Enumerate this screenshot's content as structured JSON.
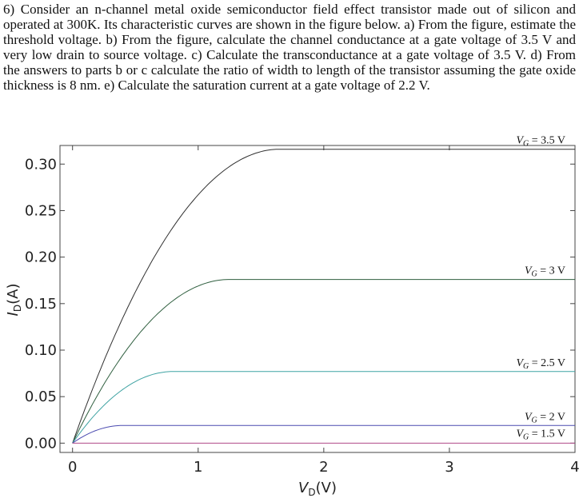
{
  "problem": {
    "text": "6) Consider an n-channel metal oxide semiconductor field effect transistor made out of silicon and operated at 300K. Its characteristic curves are shown in the figure below. a) From the figure, estimate the threshold voltage. b) From the figure, calculate the channel conductance at a gate voltage of 3.5 V and very low drain to source voltage. c) Calculate the transconductance at a gate voltage of 3.5 V. d) From the answers to parts b or c calculate the ratio of width to length of the transistor assuming the gate oxide thickness is 8 nm. e) Calculate the saturation current at a gate voltage of 2.2 V."
  },
  "chart_data": {
    "type": "line",
    "xlabel": "V_D(V)",
    "ylabel": "I_D(A)",
    "xlim": [
      -0.1,
      4.0
    ],
    "ylim": [
      -0.01,
      0.32
    ],
    "xticks": [
      0,
      1,
      2,
      3,
      4
    ],
    "yticks": [
      0.0,
      0.05,
      0.1,
      0.15,
      0.2,
      0.25,
      0.3
    ],
    "ytick_labels": [
      "0.00",
      "0.05",
      "0.10",
      "0.15",
      "0.20",
      "0.25",
      "0.30"
    ],
    "xtick_labels": [
      "0",
      "1",
      "2",
      "3",
      "4"
    ],
    "grid": false,
    "series": [
      {
        "name": "VG = 3.5 V",
        "vsat": 1.65,
        "isat": 0.316,
        "color": "#303030"
      },
      {
        "name": "VG = 3 V",
        "vsat": 1.25,
        "isat": 0.176,
        "color": "#2f5f3f"
      },
      {
        "name": "VG = 2.5 V",
        "vsat": 0.8,
        "isat": 0.077,
        "color": "#3fa3a3"
      },
      {
        "name": "VG = 2 V",
        "vsat": 0.4,
        "isat": 0.019,
        "color": "#4a4ab0"
      },
      {
        "name": "VG = 1.5 V",
        "vsat": 0.0,
        "isat": 0.0,
        "color": "#b04a8a"
      }
    ],
    "curve_labels": [
      {
        "sub": "G",
        "rest": "= 3.5 V"
      },
      {
        "sub": "G",
        "rest": "= 3 V"
      },
      {
        "sub": "G",
        "rest": "= 2.5 V"
      },
      {
        "sub": "G",
        "rest": "= 2 V"
      },
      {
        "sub": "G",
        "rest": "= 1.5 V"
      }
    ]
  }
}
